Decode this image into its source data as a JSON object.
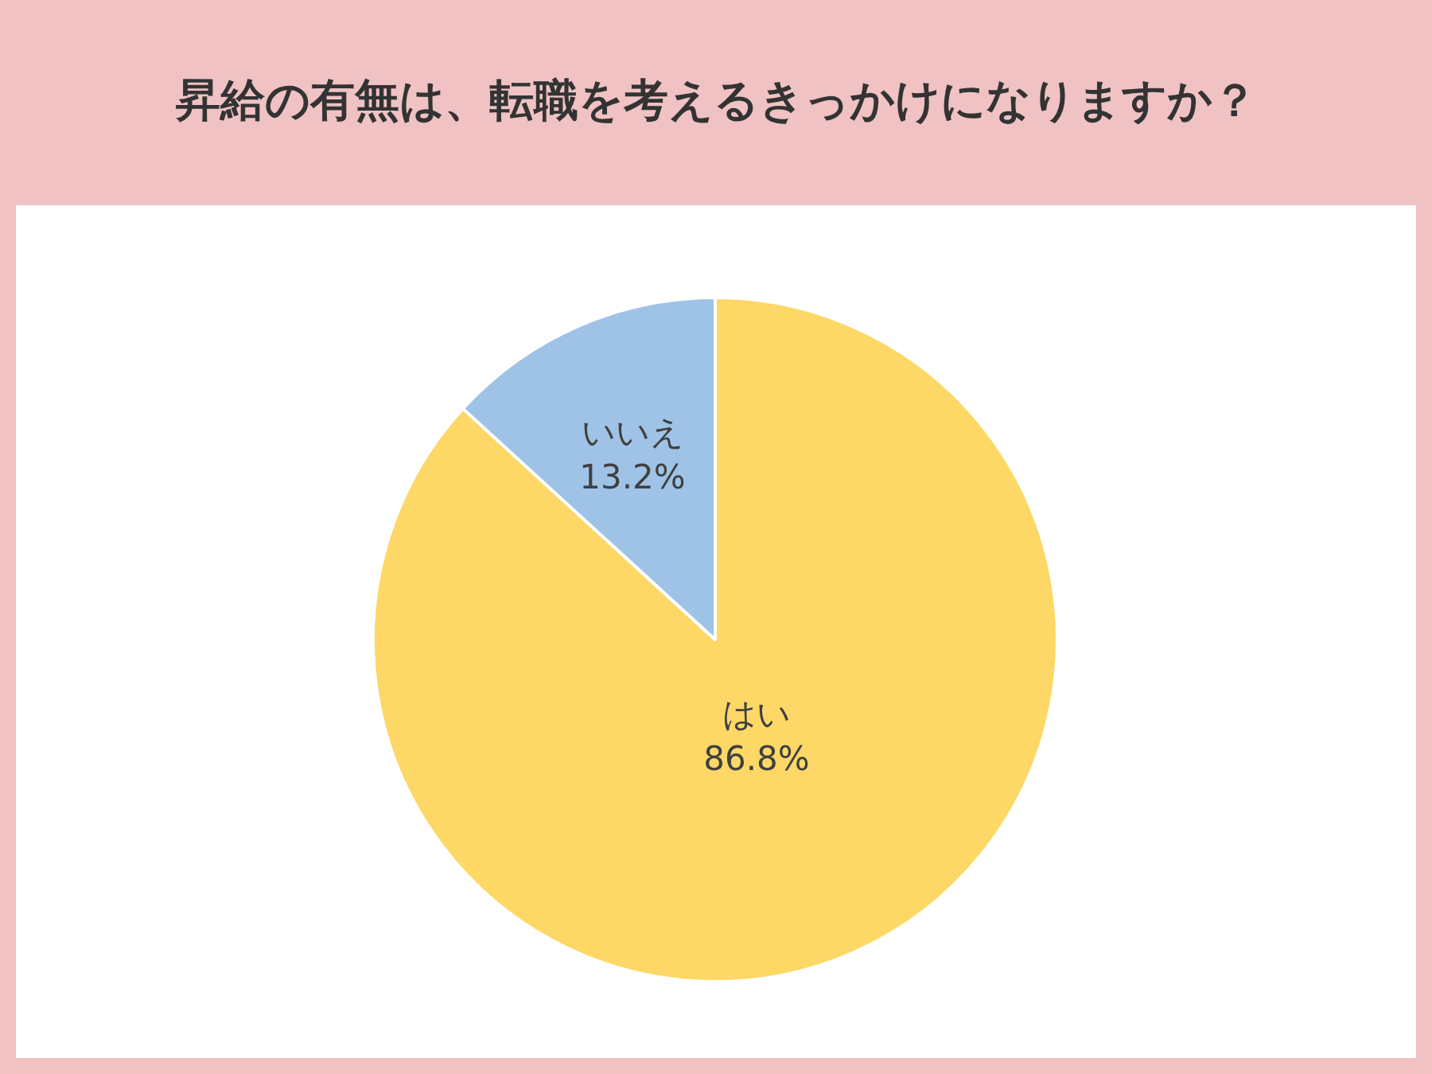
{
  "chart_data": {
    "type": "pie",
    "title": "昇給の有無は、転職を考えるきっかけになりますか？",
    "categories": [
      "はい",
      "いいえ"
    ],
    "values": [
      86.8,
      13.2
    ],
    "colors": [
      "#fdd866",
      "#9fc3e7"
    ],
    "value_labels": [
      "86.8%",
      "13.2%"
    ]
  }
}
